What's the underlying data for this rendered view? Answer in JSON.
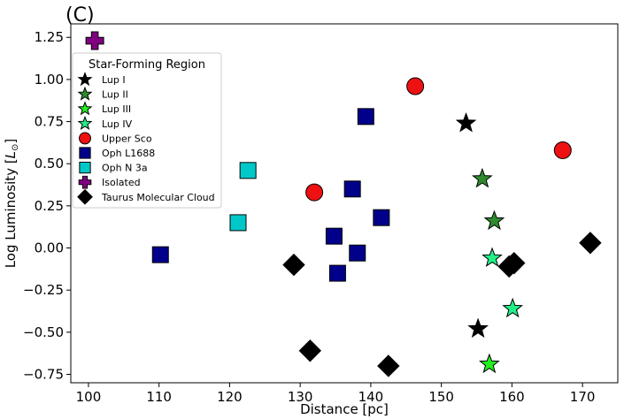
{
  "chart_data": {
    "type": "scatter",
    "panel_label": "(C)",
    "xlabel": "Distance [pc]",
    "ylabel_main": "Log Luminosity [",
    "ylabel_sym": "L",
    "ylabel_sub": "⊙",
    "ylabel_end": "]",
    "xlim": [
      97.5,
      175
    ],
    "ylim": [
      -0.8,
      1.33
    ],
    "xticks": [
      100,
      110,
      120,
      130,
      140,
      150,
      160,
      170
    ],
    "xtick_labels": [
      "100",
      "110",
      "120",
      "130",
      "140",
      "150",
      "160",
      "170"
    ],
    "yticks": [
      -0.75,
      -0.5,
      -0.25,
      0.0,
      0.25,
      0.5,
      0.75,
      1.0,
      1.25
    ],
    "ytick_labels": [
      "−0.75",
      "−0.50",
      "−0.25",
      "0.00",
      "0.25",
      "0.50",
      "0.75",
      "1.00",
      "1.25"
    ],
    "legend_title": "Star-Forming Region",
    "legend_position": "upper-left",
    "series": [
      {
        "name": "Lup I",
        "marker": "star",
        "color": "#000000",
        "points": [
          [
            153.5,
            0.74
          ],
          [
            155.2,
            -0.48
          ]
        ]
      },
      {
        "name": "Lup II",
        "marker": "star",
        "color": "#2e8b2e",
        "points": [
          [
            155.8,
            0.41
          ],
          [
            157.5,
            0.16
          ]
        ]
      },
      {
        "name": "Lup III",
        "marker": "star",
        "color": "#22ee22",
        "points": [
          [
            156.8,
            -0.69
          ]
        ]
      },
      {
        "name": "Lup IV",
        "marker": "star",
        "color": "#22ee88",
        "points": [
          [
            157.2,
            -0.06
          ],
          [
            160.1,
            -0.36
          ]
        ]
      },
      {
        "name": "Upper Sco",
        "marker": "circle",
        "color": "#ee1111",
        "points": [
          [
            146.3,
            0.96
          ],
          [
            132.0,
            0.33
          ],
          [
            167.2,
            0.58
          ]
        ]
      },
      {
        "name": "Oph L1688",
        "marker": "square",
        "color": "#00008b",
        "points": [
          [
            139.3,
            0.78
          ],
          [
            137.4,
            0.35
          ],
          [
            141.5,
            0.18
          ],
          [
            134.8,
            0.07
          ],
          [
            138.1,
            -0.03
          ],
          [
            135.3,
            -0.15
          ],
          [
            110.2,
            -0.04
          ]
        ]
      },
      {
        "name": "Oph N 3a",
        "marker": "square",
        "color": "#00c8c8",
        "points": [
          [
            122.6,
            0.46
          ],
          [
            121.2,
            0.15
          ]
        ]
      },
      {
        "name": "Isolated",
        "marker": "plus",
        "color": "#800080",
        "points": [
          [
            100.9,
            1.23
          ]
        ]
      },
      {
        "name": "Taurus Molecular Cloud",
        "marker": "diamond",
        "color": "#000000",
        "points": [
          [
            129.1,
            -0.1
          ],
          [
            159.6,
            -0.11
          ],
          [
            160.3,
            -0.09
          ],
          [
            171.1,
            0.03
          ],
          [
            131.4,
            -0.61
          ],
          [
            142.5,
            -0.7
          ]
        ]
      }
    ]
  }
}
